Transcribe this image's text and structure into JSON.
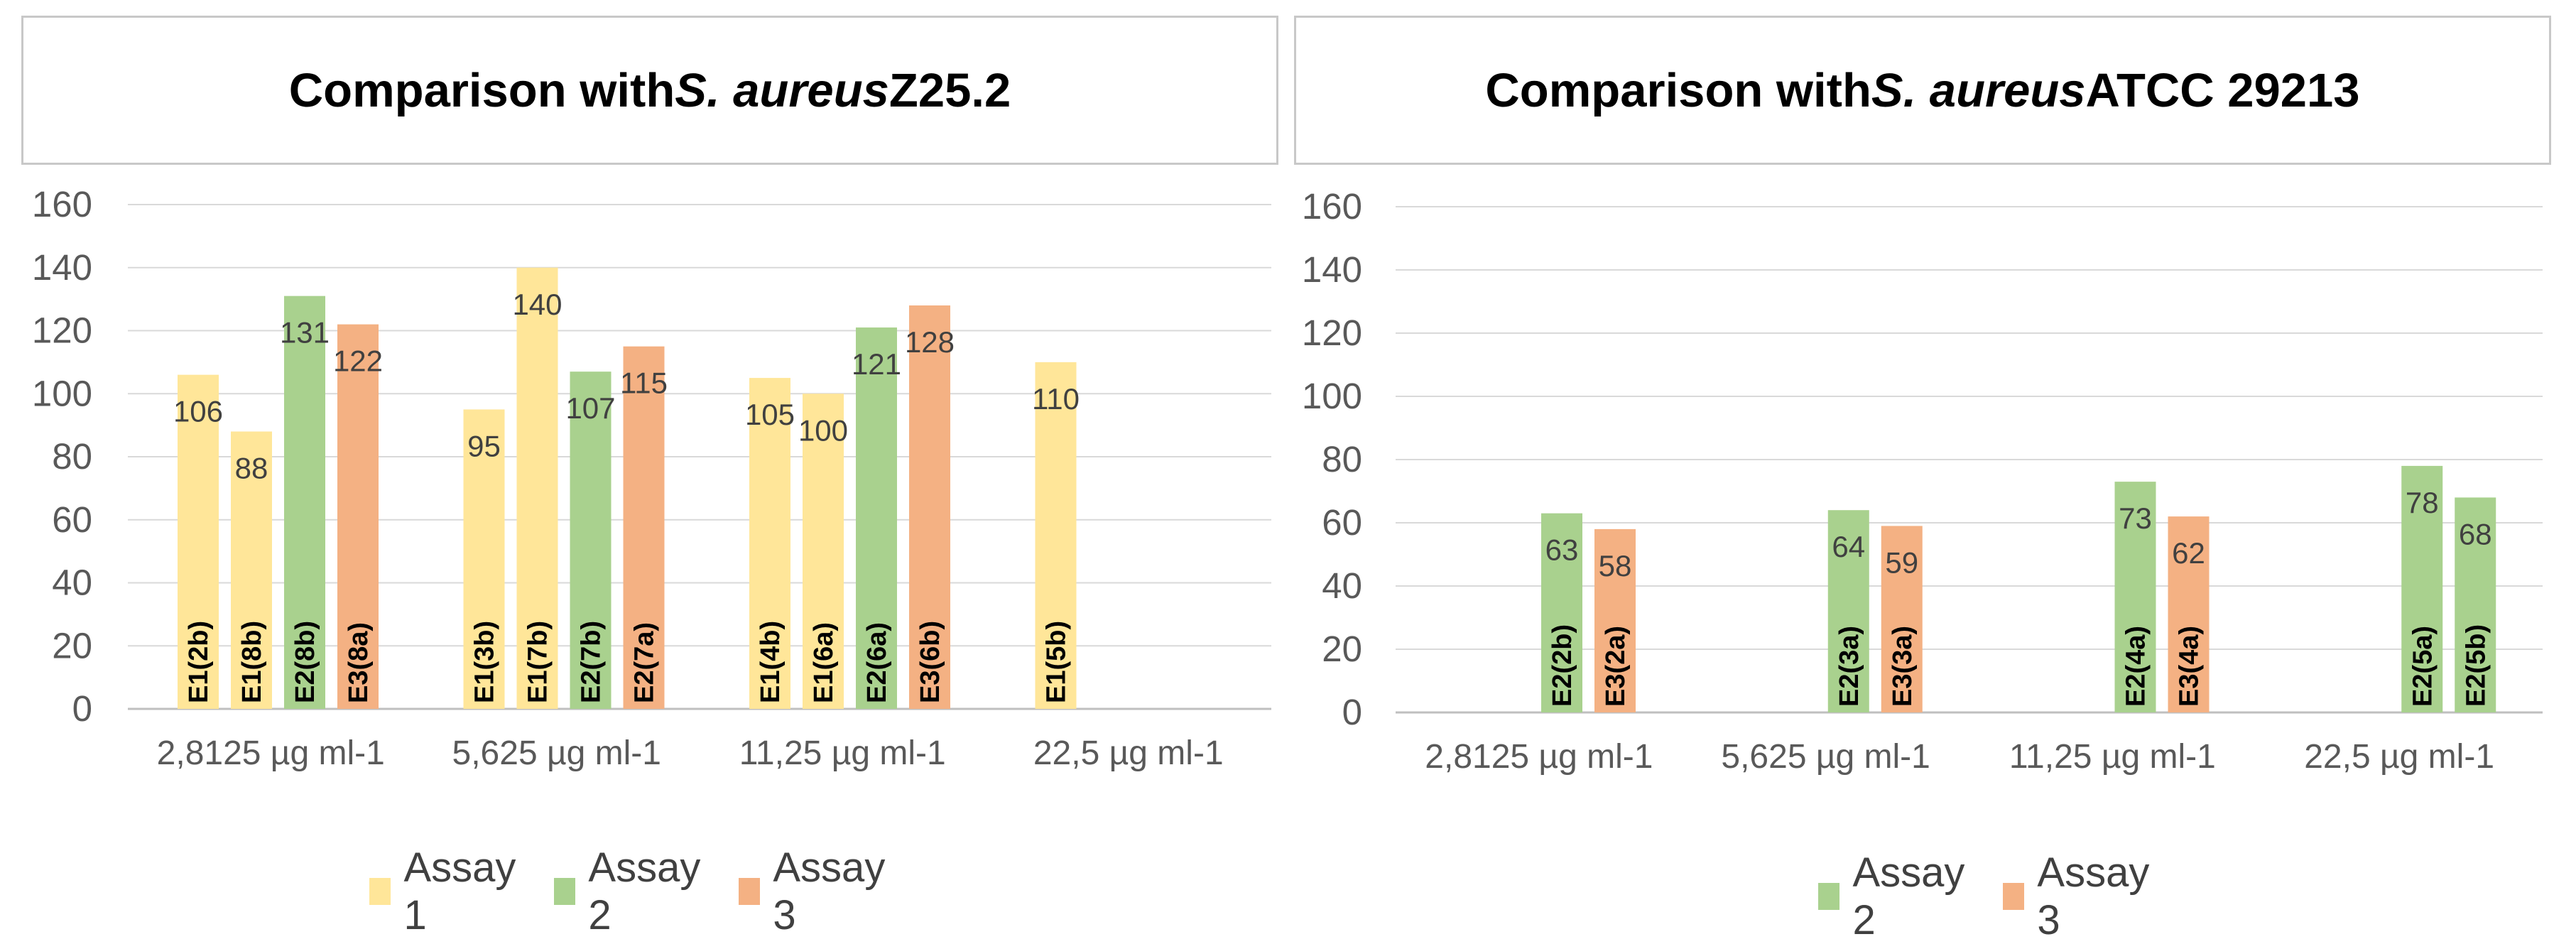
{
  "chart_data": [
    {
      "type": "bar",
      "title_prefix": "Comparison with ",
      "title_italic": "S. aureus",
      "title_suffix": " Z25.2",
      "categories": [
        "2,8125 µg ml-1",
        "5,625 µg ml-1",
        "11,25 µg ml-1",
        "22,5 µg ml-1"
      ],
      "ylim": [
        0,
        160
      ],
      "yticks": [
        0,
        20,
        40,
        60,
        80,
        100,
        120,
        140,
        160
      ],
      "grid": true,
      "legend_position": "bottom",
      "legend": [
        "Assay 1",
        "Assay 2",
        "Assay 3"
      ],
      "bars": [
        [
          {
            "label": "E1(2b)",
            "value": 106,
            "assay": "Assay 1"
          },
          {
            "label": "E1(8b)",
            "value": 88,
            "assay": "Assay 1"
          },
          {
            "label": "E2(8b)",
            "value": 131,
            "assay": "Assay 2"
          },
          {
            "label": "E3(8a)",
            "value": 122,
            "assay": "Assay 3"
          }
        ],
        [
          {
            "label": "E1(3b)",
            "value": 95,
            "assay": "Assay 1"
          },
          {
            "label": "E1(7b)",
            "value": 140,
            "assay": "Assay 1"
          },
          {
            "label": "E2(7b)",
            "value": 107,
            "assay": "Assay 2"
          },
          {
            "label": "E2(7a)",
            "value": 115,
            "assay": "Assay 3"
          }
        ],
        [
          {
            "label": "E1(4b)",
            "value": 105,
            "assay": "Assay 1"
          },
          {
            "label": "E1(6a)",
            "value": 100,
            "assay": "Assay 1"
          },
          {
            "label": "E2(6a)",
            "value": 121,
            "assay": "Assay 2"
          },
          {
            "label": "E3(6b)",
            "value": 128,
            "assay": "Assay 3"
          }
        ],
        [
          {
            "label": "E1(5b)",
            "value": 110,
            "assay": "Assay 1"
          }
        ]
      ]
    },
    {
      "type": "bar",
      "title_prefix": "Comparison with ",
      "title_italic": "S. aureus",
      "title_suffix": " ATCC 29213",
      "categories": [
        "2,8125 µg ml-1",
        "5,625 µg ml-1",
        "11,25 µg ml-1",
        "22,5 µg ml-1"
      ],
      "ylim": [
        0,
        160
      ],
      "yticks": [
        0,
        20,
        40,
        60,
        80,
        100,
        120,
        140,
        160
      ],
      "grid": true,
      "legend_position": "bottom",
      "legend": [
        "Assay 2",
        "Assay 3"
      ],
      "bars": [
        [
          {
            "label": "E2(2b)",
            "value": 63,
            "assay": "Assay 2"
          },
          {
            "label": "E3(2a)",
            "value": 58,
            "assay": "Assay 3"
          }
        ],
        [
          {
            "label": "E2(3a)",
            "value": 64,
            "assay": "Assay 2"
          },
          {
            "label": "E3(3a)",
            "value": 59,
            "assay": "Assay 3"
          }
        ],
        [
          {
            "label": "E2(4a)",
            "value": 73,
            "assay": "Assay 2"
          },
          {
            "label": "E3(4a)",
            "value": 62,
            "assay": "Assay 3"
          }
        ],
        [
          {
            "label": "E2(5a)",
            "value": 78,
            "assay": "Assay 2"
          },
          {
            "label": "E2(5b)",
            "value": 68,
            "assay": "Assay 2"
          }
        ]
      ]
    }
  ],
  "colors": {
    "Assay 1": "#ffe699",
    "Assay 2": "#a9d18e",
    "Assay 3": "#f4b183",
    "grid": "#d9d9d9",
    "axis": "#bfbfbf"
  }
}
